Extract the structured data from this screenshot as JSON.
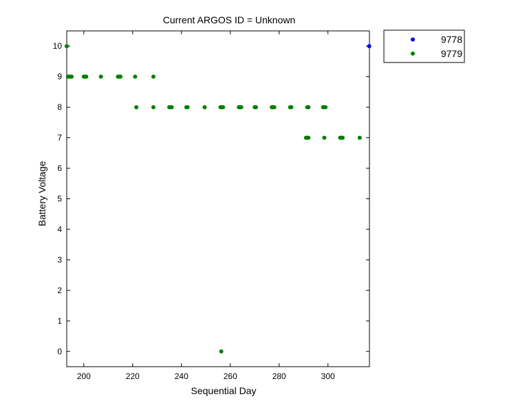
{
  "chart_data": {
    "type": "scatter",
    "title": "Current ARGOS ID = Unknown",
    "xlabel": "Sequential Day",
    "ylabel": "Battery Voltage",
    "xlim": [
      193,
      317
    ],
    "ylim": [
      -0.5,
      10.5
    ],
    "xticks": [
      200,
      220,
      240,
      260,
      280,
      300
    ],
    "yticks": [
      0,
      1,
      2,
      3,
      4,
      5,
      6,
      7,
      8,
      9,
      10
    ],
    "grid": false,
    "legend_position": "outside-top-right",
    "series": [
      {
        "name": "9778",
        "color": "#0000ff",
        "x": [
          316.9
        ],
        "y": [
          10
        ]
      },
      {
        "name": "9779",
        "color": "#008000",
        "x": [
          193,
          193.5,
          194,
          194.5,
          195,
          200,
          200.5,
          201,
          207,
          214,
          214.5,
          215,
          221,
          228.5,
          221.5,
          228.5,
          235,
          235.5,
          236,
          242,
          242.5,
          249.5,
          256,
          256.5,
          257,
          263.5,
          264,
          264.5,
          270,
          270.5,
          277,
          277.5,
          278,
          284.5,
          285,
          291.5,
          292,
          298,
          298.5,
          299,
          291,
          291.5,
          292,
          298.5,
          305,
          305.5,
          306,
          313,
          256.3
        ],
        "y": [
          10,
          9,
          9,
          9,
          9,
          9,
          9,
          9,
          9,
          9,
          9,
          9,
          9,
          9,
          8,
          8,
          8,
          8,
          8,
          8,
          8,
          8,
          8,
          8,
          8,
          8,
          8,
          8,
          8,
          8,
          8,
          8,
          8,
          8,
          8,
          8,
          8,
          8,
          8,
          8,
          7,
          7,
          7,
          7,
          7,
          7,
          7,
          7,
          0
        ]
      }
    ]
  }
}
